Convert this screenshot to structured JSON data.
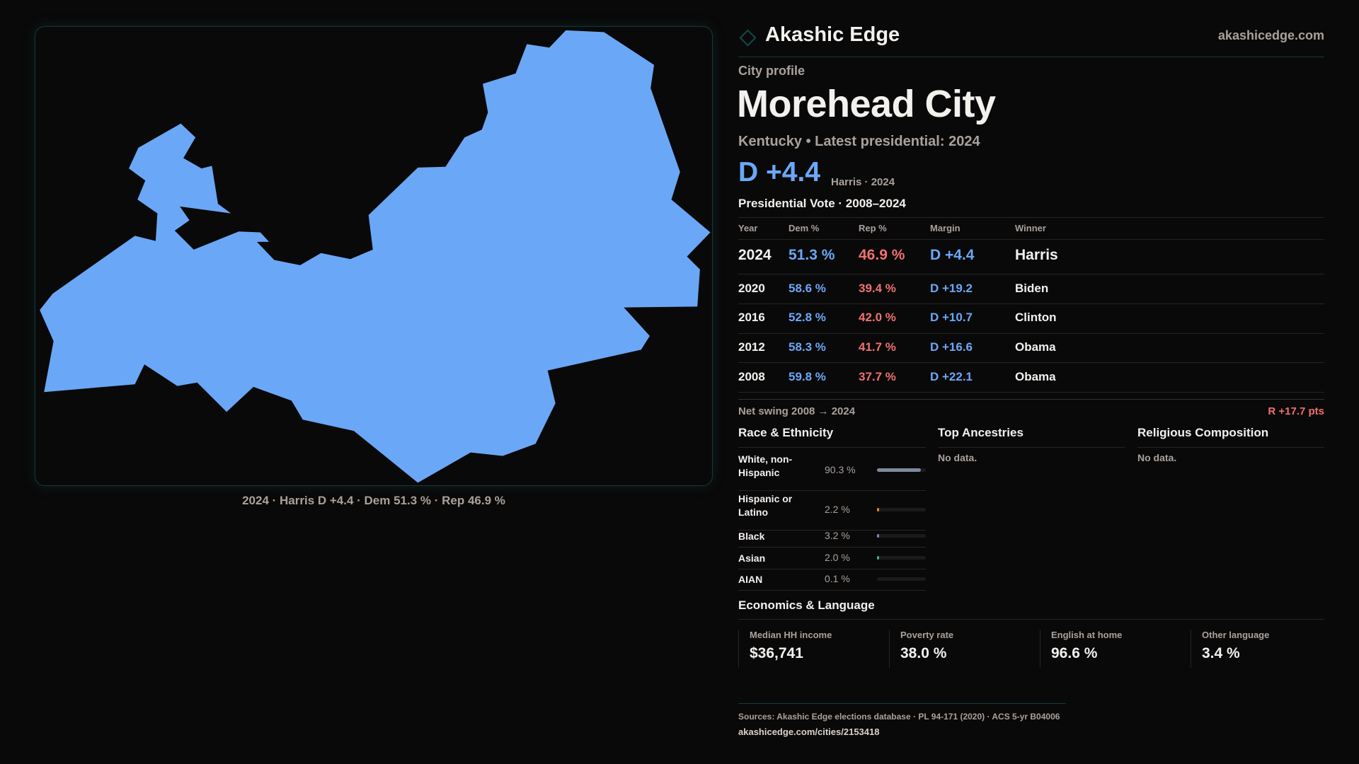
{
  "map": {
    "caption": "2024 · Harris D +4.4 · Dem 51.3 % · Rep 46.9 %",
    "fill_color": "#6aa7f7"
  },
  "header": {
    "brand": "Akashic Edge",
    "site": "akashicedge.com"
  },
  "profile": {
    "kicker": "City profile",
    "title": "Morehead City",
    "subtitle": "Kentucky • Latest presidential: 2024",
    "margin": "D +4.4",
    "margin_note": "Harris · 2024"
  },
  "votes": {
    "title": "Presidential Vote · 2008–2024",
    "columns": [
      "Year",
      "Dem %",
      "Rep %",
      "Margin",
      "Winner"
    ],
    "rows": [
      {
        "year": "2024",
        "dem": "51.3 %",
        "rep": "46.9 %",
        "margin": "D +4.4",
        "winner": "Harris"
      },
      {
        "year": "2020",
        "dem": "58.6 %",
        "rep": "39.4 %",
        "margin": "D +19.2",
        "winner": "Biden"
      },
      {
        "year": "2016",
        "dem": "52.8 %",
        "rep": "42.0 %",
        "margin": "D +10.7",
        "winner": "Clinton"
      },
      {
        "year": "2012",
        "dem": "58.3 %",
        "rep": "41.7 %",
        "margin": "D +16.6",
        "winner": "Obama"
      },
      {
        "year": "2008",
        "dem": "59.8 %",
        "rep": "37.7 %",
        "margin": "D +22.1",
        "winner": "Obama"
      }
    ],
    "swing_label": "Net swing 2008 → 2024",
    "swing_value": "R +17.7 pts"
  },
  "race": {
    "title": "Race & Ethnicity",
    "items": [
      {
        "label": "White, non-Hispanic",
        "pct": "90.3 %",
        "value": 90.3,
        "color": "#7d8a9e"
      },
      {
        "label": "Hispanic or Latino",
        "pct": "2.2 %",
        "value": 2.2,
        "color": "#d68a1c"
      },
      {
        "label": "Black",
        "pct": "3.2 %",
        "value": 3.2,
        "color": "#8c78d8"
      },
      {
        "label": "Asian",
        "pct": "2.0 %",
        "value": 2.0,
        "color": "#2fb58a"
      },
      {
        "label": "AIAN",
        "pct": "0.1 %",
        "value": 0.1,
        "color": "#c05050"
      }
    ]
  },
  "ancestries": {
    "title": "Top Ancestries",
    "empty": "No data."
  },
  "religion": {
    "title": "Religious Composition",
    "empty": "No data."
  },
  "economics": {
    "title": "Economics & Language",
    "stats": [
      {
        "label": "Median HH income",
        "value": "$36,741"
      },
      {
        "label": "Poverty rate",
        "value": "38.0 %"
      },
      {
        "label": "English at home",
        "value": "96.6 %"
      },
      {
        "label": "Other language",
        "value": "3.4 %"
      }
    ]
  },
  "footer": {
    "sources": "Sources: Akashic Edge elections database · PL 94-171 (2020) · ACS 5-yr B04006",
    "url": "akashicedge.com/cities/2153418"
  }
}
